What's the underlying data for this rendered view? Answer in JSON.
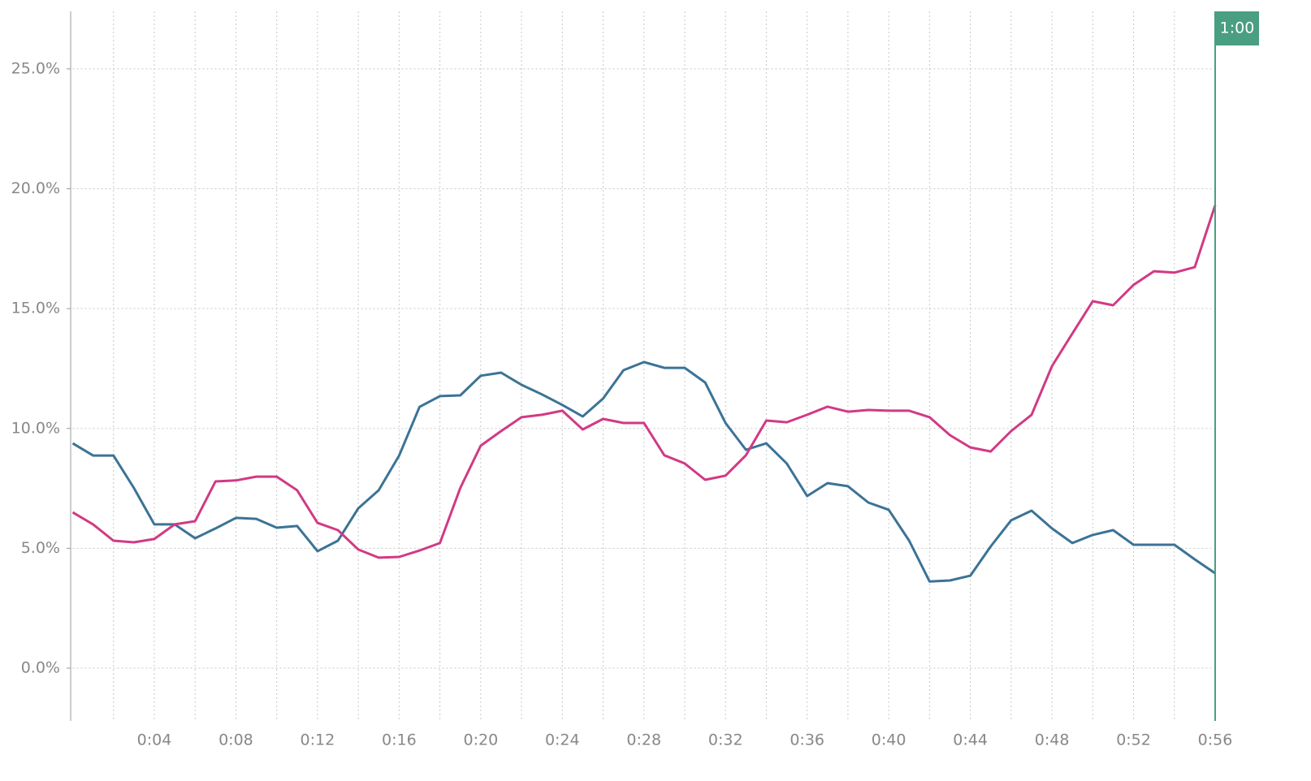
{
  "chart_data": {
    "type": "line",
    "x": [
      0,
      1,
      2,
      3,
      4,
      5,
      6,
      7,
      8,
      9,
      10,
      11,
      12,
      13,
      14,
      15,
      16,
      17,
      18,
      19,
      20,
      21,
      22,
      23,
      24,
      25,
      26,
      27,
      28,
      29,
      30,
      31,
      32,
      33,
      34,
      35,
      36,
      37,
      38,
      39,
      40,
      41,
      42,
      43,
      44,
      45,
      46,
      47,
      48,
      49,
      50,
      51,
      52,
      53,
      54,
      55,
      56
    ],
    "series": [
      {
        "color": "#3b7396",
        "values": [
          9.38,
          8.87,
          8.87,
          7.52,
          6.0,
          6.0,
          5.42,
          5.83,
          6.27,
          6.23,
          5.86,
          5.93,
          4.88,
          5.32,
          6.67,
          7.42,
          8.87,
          10.9,
          11.35,
          11.38,
          12.2,
          12.33,
          11.82,
          11.42,
          10.98,
          10.5,
          11.25,
          12.43,
          12.77,
          12.53,
          12.53,
          11.92,
          10.23,
          9.11,
          9.38,
          8.54,
          7.18,
          7.72,
          7.59,
          6.91,
          6.61,
          5.32,
          3.62,
          3.66,
          3.86,
          5.08,
          6.17,
          6.57,
          5.83,
          5.22,
          5.56,
          5.76,
          5.15,
          5.15,
          5.15,
          4.54,
          3.96
        ]
      },
      {
        "color": "#d13a84",
        "values": [
          6.5,
          6.0,
          5.32,
          5.25,
          5.39,
          6.0,
          6.13,
          7.79,
          7.83,
          7.99,
          7.99,
          7.42,
          6.06,
          5.76,
          4.95,
          4.61,
          4.64,
          4.91,
          5.22,
          7.52,
          9.28,
          9.89,
          10.47,
          10.57,
          10.74,
          9.96,
          10.4,
          10.23,
          10.23,
          8.88,
          8.54,
          7.86,
          8.03,
          8.88,
          10.33,
          10.26,
          10.57,
          10.91,
          10.7,
          10.77,
          10.74,
          10.74,
          10.47,
          9.72,
          9.21,
          9.04,
          9.89,
          10.57,
          12.6,
          13.96,
          15.31,
          15.14,
          15.99,
          16.56,
          16.5,
          16.73,
          19.31
        ]
      }
    ],
    "xlim": [
      0,
      56
    ],
    "xticks": [
      {
        "value": 2,
        "label": null
      },
      {
        "value": 4,
        "label": "0:04"
      },
      {
        "value": 6,
        "label": null
      },
      {
        "value": 8,
        "label": "0:08"
      },
      {
        "value": 10,
        "label": null
      },
      {
        "value": 12,
        "label": "0:12"
      },
      {
        "value": 14,
        "label": null
      },
      {
        "value": 16,
        "label": "0:16"
      },
      {
        "value": 18,
        "label": null
      },
      {
        "value": 20,
        "label": "0:20"
      },
      {
        "value": 22,
        "label": null
      },
      {
        "value": 24,
        "label": "0:24"
      },
      {
        "value": 26,
        "label": null
      },
      {
        "value": 28,
        "label": "0:28"
      },
      {
        "value": 30,
        "label": null
      },
      {
        "value": 32,
        "label": "0:32"
      },
      {
        "value": 34,
        "label": null
      },
      {
        "value": 36,
        "label": "0:36"
      },
      {
        "value": 38,
        "label": null
      },
      {
        "value": 40,
        "label": "0:40"
      },
      {
        "value": 42,
        "label": null
      },
      {
        "value": 44,
        "label": "0:44"
      },
      {
        "value": 46,
        "label": null
      },
      {
        "value": 48,
        "label": "0:48"
      },
      {
        "value": 50,
        "label": null
      },
      {
        "value": 52,
        "label": "0:52"
      },
      {
        "value": 54,
        "label": null
      },
      {
        "value": 56,
        "label": "0:56"
      }
    ],
    "ylim": [
      -2.2,
      27.4
    ],
    "yticks": [
      {
        "value": 0,
        "label": "0.0%"
      },
      {
        "value": 5,
        "label": "5.0%"
      },
      {
        "value": 10,
        "label": "10.0%"
      },
      {
        "value": 15,
        "label": "15.0%"
      },
      {
        "value": 20,
        "label": "20.0%"
      },
      {
        "value": 25,
        "label": "25.0%"
      }
    ],
    "grid": true,
    "marker_label": "1:00",
    "marker_color": "#4a9e82"
  }
}
